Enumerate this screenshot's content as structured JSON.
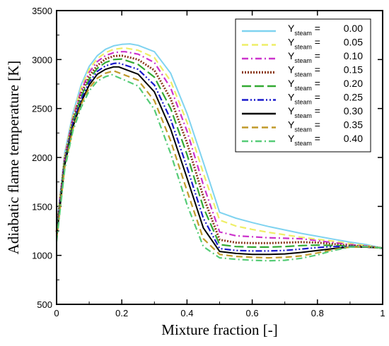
{
  "chart_data": {
    "type": "line",
    "title": "",
    "xlabel": "Mixture fraction [-]",
    "ylabel": "Adiabatic flame temperature [K]",
    "xlim": [
      0,
      1
    ],
    "ylim": [
      500,
      3500
    ],
    "xticks": [
      "0",
      "0.2",
      "0.4",
      "0.6",
      "0.8",
      "1"
    ],
    "yticks": [
      "500",
      "1000",
      "1500",
      "2000",
      "2500",
      "3000",
      "3500"
    ],
    "grid": false,
    "legend": {
      "placement": "top-right",
      "prefix": "Y",
      "subscript": "steam",
      "equals": " ="
    },
    "series": [
      {
        "name": "0.00",
        "color": "#7fd3f0",
        "dash": "solid",
        "x": [
          0.0,
          0.025,
          0.05,
          0.075,
          0.1,
          0.125,
          0.15,
          0.175,
          0.2,
          0.225,
          0.25,
          0.3,
          0.35,
          0.4,
          0.45,
          0.5,
          0.55,
          0.6,
          0.65,
          0.7,
          0.75,
          0.8,
          0.85,
          0.9,
          0.95,
          1.0
        ],
        "y": [
          1300,
          2050,
          2450,
          2740,
          2930,
          3040,
          3105,
          3140,
          3155,
          3160,
          3145,
          3080,
          2860,
          2450,
          1950,
          1440,
          1380,
          1335,
          1295,
          1260,
          1225,
          1195,
          1165,
          1135,
          1110,
          1075
        ]
      },
      {
        "name": "0.05",
        "color": "#eeee66",
        "dash": "dash",
        "x": [
          0.0,
          0.025,
          0.05,
          0.075,
          0.1,
          0.125,
          0.15,
          0.175,
          0.2,
          0.215,
          0.25,
          0.3,
          0.35,
          0.4,
          0.45,
          0.5,
          0.55,
          0.6,
          0.65,
          0.7,
          0.75,
          0.8,
          0.85,
          0.9,
          0.95,
          1.0
        ],
        "y": [
          1280,
          2020,
          2420,
          2710,
          2900,
          3010,
          3070,
          3105,
          3115,
          3115,
          3095,
          3020,
          2780,
          2360,
          1840,
          1360,
          1300,
          1265,
          1235,
          1210,
          1185,
          1165,
          1145,
          1120,
          1100,
          1075
        ]
      },
      {
        "name": "0.10",
        "color": "#cc33cc",
        "dash": "dashdot",
        "x": [
          0.0,
          0.025,
          0.05,
          0.075,
          0.1,
          0.125,
          0.15,
          0.175,
          0.2,
          0.21,
          0.25,
          0.3,
          0.35,
          0.4,
          0.45,
          0.5,
          0.55,
          0.6,
          0.65,
          0.7,
          0.75,
          0.8,
          0.85,
          0.9,
          0.95,
          1.0
        ],
        "y": [
          1260,
          2000,
          2400,
          2680,
          2870,
          2980,
          3040,
          3070,
          3080,
          3080,
          3055,
          2970,
          2710,
          2270,
          1720,
          1240,
          1200,
          1190,
          1180,
          1175,
          1170,
          1150,
          1130,
          1110,
          1095,
          1075
        ]
      },
      {
        "name": "0.15",
        "color": "#8b3a1e",
        "dash": "dotted",
        "x": [
          0.0,
          0.025,
          0.05,
          0.075,
          0.1,
          0.125,
          0.15,
          0.175,
          0.2,
          0.25,
          0.3,
          0.35,
          0.4,
          0.45,
          0.5,
          0.55,
          0.6,
          0.65,
          0.7,
          0.75,
          0.8,
          0.85,
          0.9,
          0.95,
          1.0
        ],
        "y": [
          1240,
          1980,
          2380,
          2650,
          2830,
          2940,
          3005,
          3035,
          3040,
          3000,
          2890,
          2600,
          2150,
          1600,
          1160,
          1130,
          1125,
          1125,
          1130,
          1135,
          1130,
          1115,
          1100,
          1090,
          1075
        ]
      },
      {
        "name": "0.20",
        "color": "#33aa33",
        "dash": "longdash",
        "x": [
          0.0,
          0.025,
          0.05,
          0.075,
          0.1,
          0.125,
          0.15,
          0.175,
          0.2,
          0.25,
          0.3,
          0.35,
          0.4,
          0.45,
          0.5,
          0.55,
          0.6,
          0.65,
          0.7,
          0.75,
          0.8,
          0.85,
          0.9,
          0.95,
          1.0
        ],
        "y": [
          1220,
          1960,
          2360,
          2620,
          2800,
          2910,
          2970,
          3000,
          3005,
          2950,
          2820,
          2500,
          2030,
          1490,
          1110,
          1090,
          1085,
          1085,
          1090,
          1100,
          1105,
          1100,
          1095,
          1085,
          1075
        ]
      },
      {
        "name": "0.25",
        "color": "#1a1acc",
        "dash": "dashdotdot",
        "x": [
          0.0,
          0.025,
          0.05,
          0.075,
          0.1,
          0.125,
          0.15,
          0.175,
          0.19,
          0.25,
          0.3,
          0.35,
          0.4,
          0.45,
          0.5,
          0.55,
          0.6,
          0.65,
          0.7,
          0.75,
          0.8,
          0.85,
          0.9,
          0.95,
          1.0
        ],
        "y": [
          1200,
          1940,
          2340,
          2590,
          2770,
          2880,
          2935,
          2960,
          2965,
          2900,
          2740,
          2390,
          1900,
          1380,
          1070,
          1050,
          1045,
          1045,
          1050,
          1065,
          1080,
          1090,
          1090,
          1085,
          1075
        ]
      },
      {
        "name": "0.30",
        "color": "#000000",
        "dash": "solid",
        "x": [
          0.0,
          0.025,
          0.05,
          0.075,
          0.1,
          0.125,
          0.15,
          0.175,
          0.19,
          0.25,
          0.3,
          0.35,
          0.4,
          0.45,
          0.5,
          0.55,
          0.6,
          0.65,
          0.7,
          0.75,
          0.8,
          0.85,
          0.9,
          0.95,
          1.0
        ],
        "y": [
          1180,
          1920,
          2310,
          2560,
          2740,
          2850,
          2900,
          2925,
          2925,
          2850,
          2670,
          2290,
          1790,
          1280,
          1040,
          1020,
          1010,
          1010,
          1015,
          1030,
          1050,
          1070,
          1085,
          1085,
          1075
        ]
      },
      {
        "name": "0.35",
        "color": "#c09a2a",
        "dash": "dash",
        "x": [
          0.0,
          0.025,
          0.05,
          0.075,
          0.1,
          0.125,
          0.15,
          0.175,
          0.25,
          0.3,
          0.35,
          0.4,
          0.45,
          0.5,
          0.55,
          0.6,
          0.65,
          0.7,
          0.75,
          0.8,
          0.85,
          0.9,
          0.95,
          1.0
        ],
        "y": [
          1160,
          1900,
          2290,
          2540,
          2710,
          2810,
          2860,
          2885,
          2790,
          2580,
          2170,
          1660,
          1170,
          1010,
          990,
          980,
          975,
          980,
          995,
          1025,
          1060,
          1085,
          1088,
          1075
        ]
      },
      {
        "name": "0.40",
        "color": "#55cc77",
        "dash": "dashdot",
        "x": [
          0.0,
          0.025,
          0.05,
          0.075,
          0.1,
          0.125,
          0.15,
          0.17,
          0.25,
          0.3,
          0.35,
          0.4,
          0.45,
          0.5,
          0.55,
          0.6,
          0.65,
          0.7,
          0.75,
          0.8,
          0.85,
          0.9,
          0.95,
          1.0
        ],
        "y": [
          1140,
          1880,
          2270,
          2510,
          2680,
          2780,
          2825,
          2845,
          2730,
          2490,
          2040,
          1520,
          1090,
          975,
          960,
          950,
          945,
          950,
          970,
          1005,
          1050,
          1085,
          1090,
          1075
        ]
      }
    ]
  }
}
